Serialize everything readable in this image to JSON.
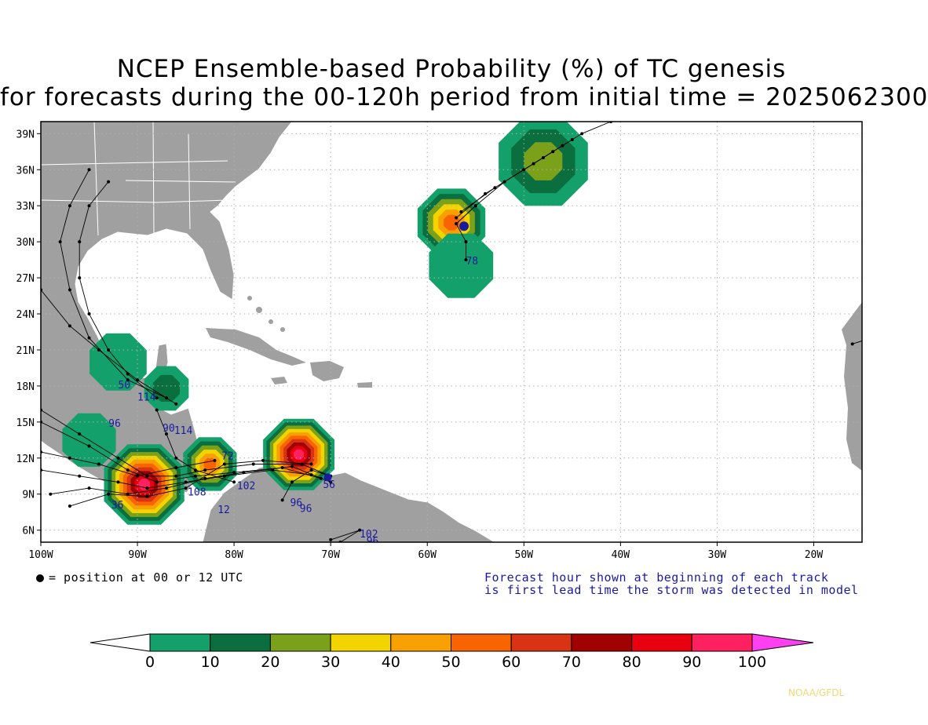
{
  "title": {
    "line1": "NCEP Ensemble-based Probability (%) of TC genesis",
    "line2": "for forecasts during the 00-120h period from initial time = 2025062300"
  },
  "map": {
    "lon_range": [
      -100,
      -15
    ],
    "lat_range": [
      5,
      40
    ],
    "lon_ticks": [
      "100W",
      "90W",
      "80W",
      "70W",
      "60W",
      "50W",
      "40W",
      "30W",
      "20W"
    ],
    "lat_ticks": [
      "6N",
      "9N",
      "12N",
      "15N",
      "18N",
      "21N",
      "24N",
      "27N",
      "30N",
      "33N",
      "36N",
      "39N"
    ],
    "grid": "dotted",
    "land_color": "#a0a0a0",
    "ocean_color": "#ffffff"
  },
  "hour_labels": [
    {
      "text": "78",
      "lon": -56,
      "lat": 28.1
    },
    {
      "text": "96",
      "lon": -93,
      "lat": 14.6
    },
    {
      "text": "50",
      "lon": -92,
      "lat": 17.8
    },
    {
      "text": "114",
      "lon": -90,
      "lat": 16.8
    },
    {
      "text": "90",
      "lon": -87.4,
      "lat": 14.2
    },
    {
      "text": "114",
      "lon": -86.2,
      "lat": 14.0
    },
    {
      "text": "72",
      "lon": -81.3,
      "lat": 11.9
    },
    {
      "text": "102",
      "lon": -79.7,
      "lat": 9.4
    },
    {
      "text": "12",
      "lon": -81.7,
      "lat": 7.4
    },
    {
      "text": "96",
      "lon": -74.2,
      "lat": 8.0
    },
    {
      "text": "96",
      "lon": -73.2,
      "lat": 7.5
    },
    {
      "text": "56",
      "lon": -70.8,
      "lat": 9.5
    },
    {
      "text": "102",
      "lon": -67,
      "lat": 5.4
    },
    {
      "text": "96",
      "lon": -66.3,
      "lat": 4.8
    },
    {
      "text": "36",
      "lon": -92.7,
      "lat": 7.8
    },
    {
      "text": "108",
      "lon": -84.8,
      "lat": 8.9
    }
  ],
  "notes": {
    "dot_legend": "= position at 00 or 12 UTC",
    "forecast_line1": "Forecast hour shown at beginning of each track",
    "forecast_line2": "is first lead time the storm was detected in model",
    "credit": "NOAA/GFDL"
  },
  "colorbar": {
    "labels": [
      "0",
      "10",
      "20",
      "30",
      "40",
      "50",
      "60",
      "70",
      "80",
      "90",
      "100"
    ],
    "colors": [
      "#ffffff",
      "#14a06a",
      "#0b6e3e",
      "#7ba01a",
      "#f2d400",
      "#f8a000",
      "#f86400",
      "#d83414",
      "#a00000",
      "#e80010",
      "#ff2060",
      "#ff40f0"
    ]
  },
  "prob_regions": [
    {
      "lon": -48,
      "lat": 36.7,
      "r": 5.0,
      "max": 30
    },
    {
      "lon": -57.5,
      "lat": 31.6,
      "r": 3.8,
      "max": 60
    },
    {
      "lon": -56.5,
      "lat": 28.0,
      "r": 3.6,
      "max": 10
    },
    {
      "lon": -89.3,
      "lat": 9.8,
      "r": 4.5,
      "max": 100
    },
    {
      "lon": -82.5,
      "lat": 11.5,
      "r": 3.0,
      "max": 60
    },
    {
      "lon": -73.3,
      "lat": 12.3,
      "r": 4.0,
      "max": 100
    },
    {
      "lon": -87,
      "lat": 17.8,
      "r": 2.5,
      "max": 20
    },
    {
      "lon": -92,
      "lat": 20.0,
      "r": 3.2,
      "max": 10
    },
    {
      "lon": -95,
      "lat": 13.5,
      "r": 3.0,
      "max": 10
    }
  ]
}
